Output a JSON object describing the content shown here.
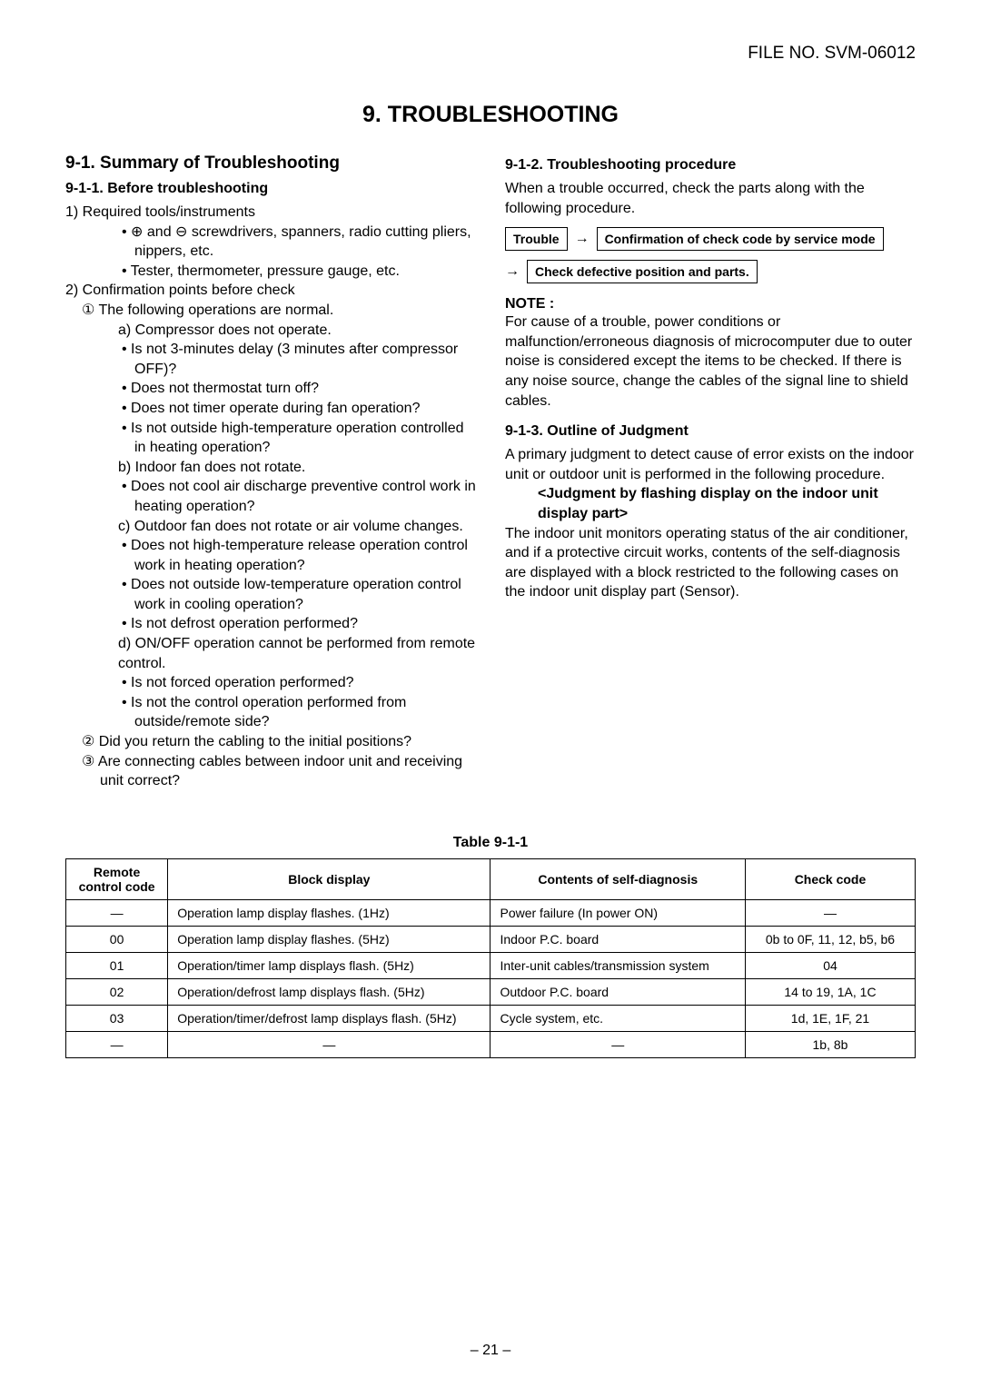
{
  "header": {
    "file_no": "FILE NO. SVM-06012"
  },
  "main_title": "9. TROUBLESHOOTING",
  "left_col": {
    "section_title": "9-1. Summary of Troubleshooting",
    "sub1_title": "9-1-1. Before troubleshooting",
    "item1": "1)  Required tools/instruments",
    "item1_b1": "⊕ and ⊖ screwdrivers, spanners, radio cutting pliers, nippers, etc.",
    "item1_b2": "Tester, thermometer, pressure gauge, etc.",
    "item2": "2)  Confirmation points before check",
    "item2_c1": "① The following operations are normal.",
    "item2_a": "a) Compressor does not operate.",
    "item2_a_b1": "Is not 3-minutes delay (3 minutes after compressor OFF)?",
    "item2_a_b2": "Does not thermostat turn off?",
    "item2_a_b3": "Does not timer operate during fan operation?",
    "item2_a_b4": "Is not outside high-temperature operation controlled in heating operation?",
    "item2_b": "b) Indoor fan does not rotate.",
    "item2_b_b1": "Does not cool air discharge preventive control work in heating operation?",
    "item2_c": "c) Outdoor fan does not rotate or air volume changes.",
    "item2_c_b1": "Does not high-temperature release operation control work in heating operation?",
    "item2_c_b2": "Does not outside low-temperature operation control work in cooling operation?",
    "item2_c_b3": "Is not defrost operation performed?",
    "item2_d": "d) ON/OFF operation cannot be performed from remote control.",
    "item2_d_b1": "Is not forced operation performed?",
    "item2_d_b2": "Is not the control operation performed from outside/remote side?",
    "item2_c2": "② Did you return the cabling to the initial positions?",
    "item2_c3": "③ Are connecting cables between indoor unit and receiving unit correct?"
  },
  "right_col": {
    "sub2_title": "9-1-2. Troubleshooting procedure",
    "sub2_text": "When a trouble occurred, check the parts along with the following procedure.",
    "flow_box1": "Trouble",
    "flow_arrow": "→",
    "flow_box2": "Confirmation of check code by service mode",
    "flow_box3": "Check defective position and parts.",
    "note_label": "NOTE :",
    "note_text": "For cause of a trouble, power conditions or malfunction/erroneous diagnosis of microcomputer due to outer noise is considered except the items to be checked. If there is any noise source, change the cables of the signal line to shield cables.",
    "sub3_title": "9-1-3. Outline of Judgment",
    "sub3_text1": "A primary judgment to detect cause of error exists on the indoor unit or outdoor unit is performed in the following procedure.",
    "sub3_bold": "<Judgment by flashing display on the indoor unit display part>",
    "sub3_text2": "The indoor unit monitors operating status of the air conditioner, and if a protective circuit works, contents of the self-diagnosis are displayed with a block restricted to the following cases on the indoor unit display part (Sensor)."
  },
  "table": {
    "title": "Table 9-1-1",
    "columns": [
      "Remote control code",
      "Block display",
      "Contents of self-diagnosis",
      "Check code"
    ],
    "rows": [
      [
        "—",
        "Operation lamp display flashes. (1Hz)",
        "Power failure (In power ON)",
        "—"
      ],
      [
        "00",
        "Operation lamp display flashes. (5Hz)",
        "Indoor P.C. board",
        "0b to 0F, 11, 12, b5, b6"
      ],
      [
        "01",
        "Operation/timer lamp displays flash. (5Hz)",
        "Inter-unit cables/transmission system",
        "04"
      ],
      [
        "02",
        "Operation/defrost lamp displays flash. (5Hz)",
        "Outdoor P.C. board",
        "14 to 19, 1A, 1C"
      ],
      [
        "03",
        "Operation/timer/defrost lamp displays flash. (5Hz)",
        "Cycle system, etc.",
        "1d, 1E, 1F, 21"
      ],
      [
        "—",
        "—",
        "—",
        "1b, 8b"
      ]
    ]
  },
  "page_number": "– 21 –"
}
